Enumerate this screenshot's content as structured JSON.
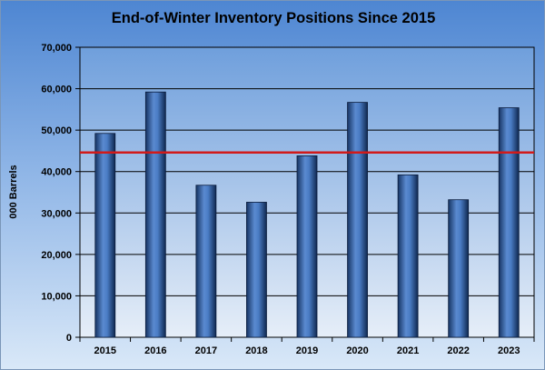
{
  "chart_data": {
    "type": "bar",
    "title": "End-of-Winter Inventory Positions Since 2015",
    "xlabel": "",
    "ylabel": "000 Barrels",
    "categories": [
      "2015",
      "2016",
      "2017",
      "2018",
      "2019",
      "2020",
      "2021",
      "2022",
      "2023"
    ],
    "values": [
      49200,
      59200,
      36700,
      32600,
      43800,
      56700,
      39200,
      33200,
      55400
    ],
    "ylim": [
      0,
      70000
    ],
    "yticks": [
      "0",
      "10,000",
      "20,000",
      "30,000",
      "40,000",
      "50,000",
      "60,000",
      "70,000"
    ],
    "reference_line": 44600,
    "grid": true,
    "bar_color": "#2c5b9c",
    "reference_line_color": "#d11a1a"
  }
}
